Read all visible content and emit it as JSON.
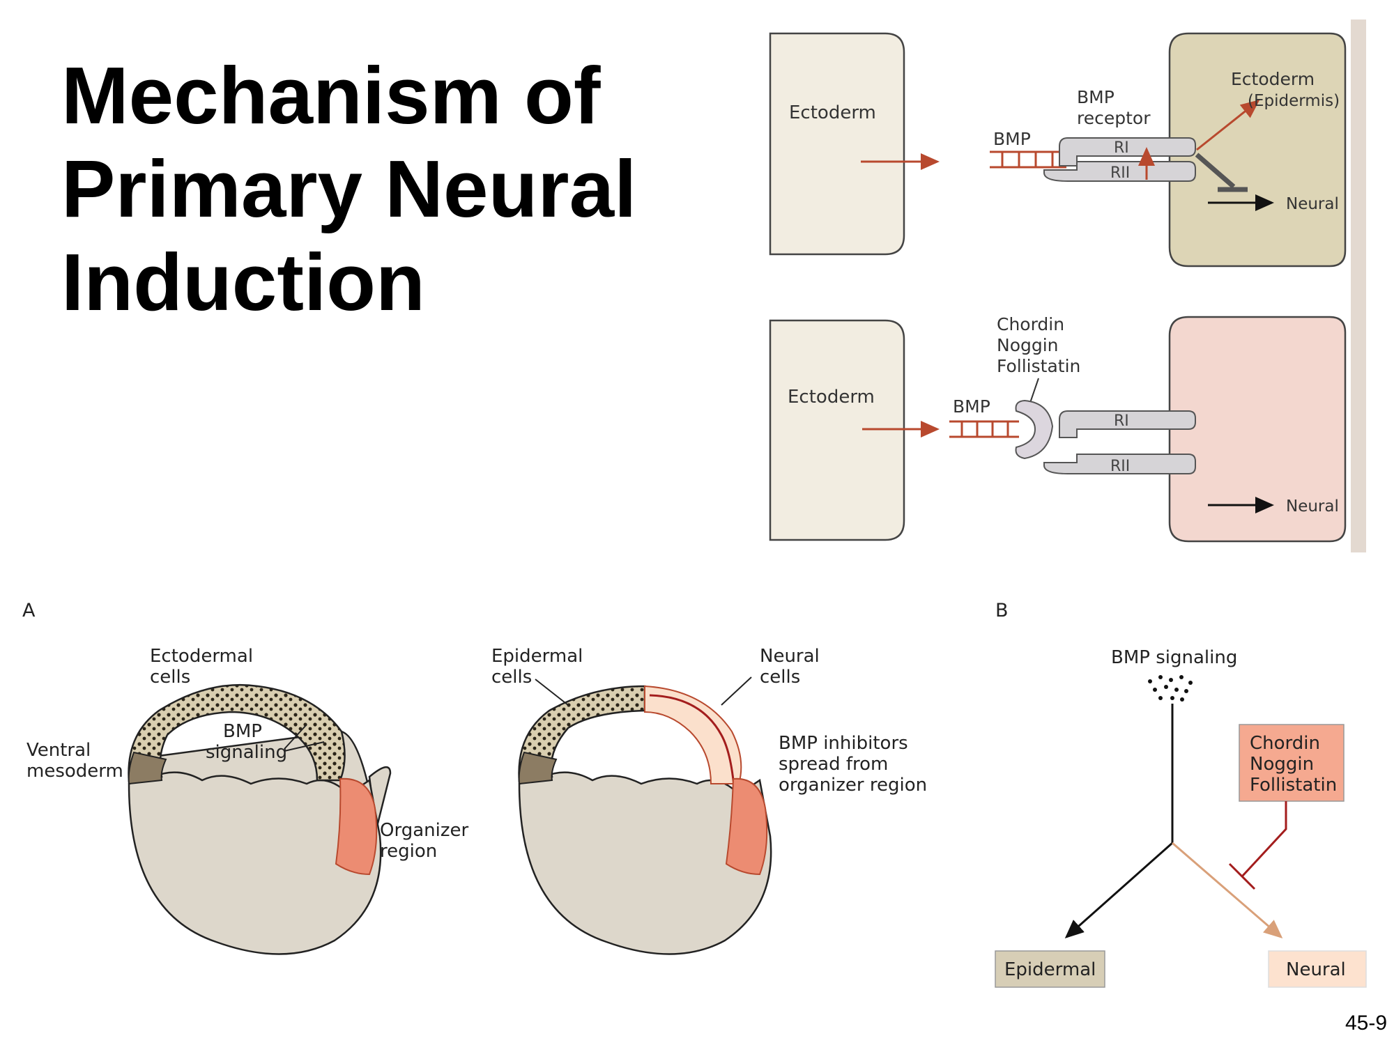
{
  "title_lines": [
    "Mechanism of",
    "Primary Neural",
    "Induction"
  ],
  "slide_number": "45-9",
  "top_panel": {
    "ectoderm": "Ectoderm",
    "bmp": "BMP",
    "receptor_lines": [
      "BMP",
      "receptor"
    ],
    "ri": "RI",
    "rii": "RII",
    "outcome_lines": [
      "Ectoderm",
      "(Epidermis)"
    ],
    "neural": "Neural"
  },
  "bottom_panel": {
    "inhibitors": [
      "Chordin",
      "Noggin",
      "Follistatin"
    ],
    "ectoderm": "Ectoderm",
    "bmp": "BMP",
    "ri": "RI",
    "rii": "RII",
    "neural": "Neural"
  },
  "figure_a": {
    "label": "A",
    "ectodermal_cells": [
      "Ectodermal",
      "cells"
    ],
    "ventral_mesoderm": [
      "Ventral",
      "mesoderm"
    ],
    "bmp_signaling": [
      "BMP",
      "signaling"
    ],
    "organizer_region": [
      "Organizer",
      "region"
    ],
    "epidermal_cells": [
      "Epidermal",
      "cells"
    ],
    "neural_cells": [
      "Neural",
      "cells"
    ],
    "bmp_inhibitors": [
      "BMP inhibitors",
      "spread from",
      "organizer region"
    ]
  },
  "figure_b": {
    "label": "B",
    "bmp_signaling": "BMP signaling",
    "inhibitors": [
      "Chordin",
      "Noggin",
      "Follistatin"
    ],
    "epidermal": "Epidermal",
    "neural": "Neural"
  },
  "colors": {
    "ectoderm_box": "#f2ede1",
    "panel_bg": "#ffffff",
    "tan_cell": "#ddd5b6",
    "pink_cell": "#f3d7cf",
    "arrow_red": "#b8492e",
    "yolk": "#ddd7cb",
    "organizer": "#ec8c72",
    "mesoderm": "#8c7c63",
    "inhibitor_box": "#f5a990",
    "epidermal_box": "#d7ceb6",
    "neural_box": "#fde2cf"
  }
}
